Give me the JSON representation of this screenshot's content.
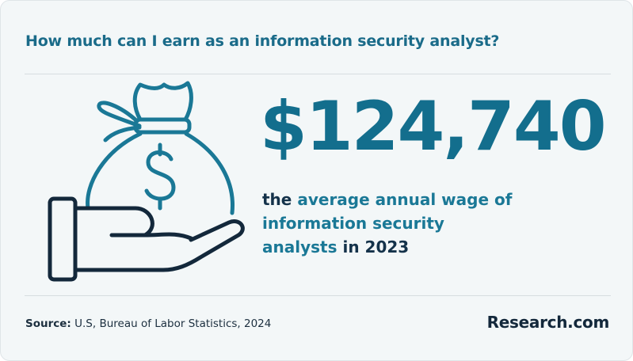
{
  "header": {
    "title": "How much can I earn as an information security analyst?"
  },
  "stat": {
    "value": "$124,740",
    "description": {
      "lead": "the",
      "highlight": "average annual wage of information security analysts",
      "connector": "in",
      "year": "2023"
    }
  },
  "footer": {
    "source_label": "Source:",
    "source_text": "U.S, Bureau of Labor Statistics, 2024",
    "logo": {
      "name": "Research",
      "suffix": ".com"
    }
  }
}
